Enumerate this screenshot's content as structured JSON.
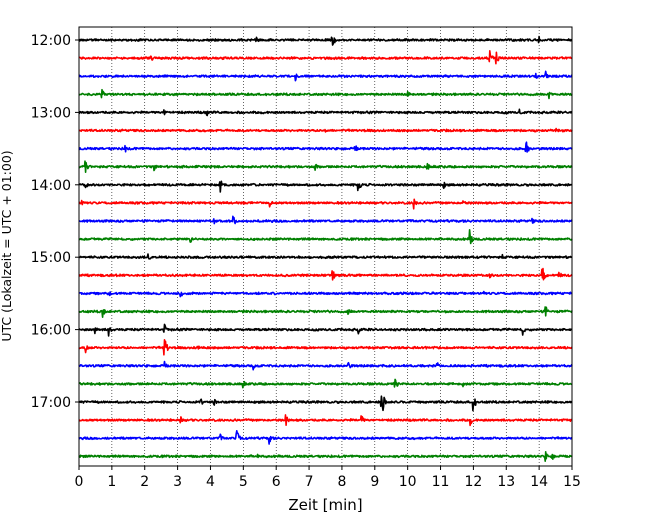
{
  "chart_data": {
    "type": "line",
    "xlabel": "Zeit  [min]",
    "ylabel": "UTC (Lokalzeit = UTC + 01:00)",
    "xlim": [
      0,
      15
    ],
    "x_ticks": [
      0,
      1,
      2,
      3,
      4,
      5,
      6,
      7,
      8,
      9,
      10,
      11,
      12,
      13,
      14,
      15
    ],
    "x_tick_labels": [
      "0",
      "1",
      "2",
      "3",
      "4",
      "5",
      "6",
      "7",
      "8",
      "9",
      "10",
      "11",
      "12",
      "13",
      "14",
      "15"
    ],
    "y_ticks": [
      "12:00",
      "13:00",
      "14:00",
      "15:00",
      "16:00",
      "17:00"
    ],
    "grid": "x-dotted",
    "trace_colors": [
      "#000000",
      "#ff0000",
      "#0000ff",
      "#008000"
    ],
    "traces": [
      {
        "start": "12:00",
        "color": "#000000",
        "events": [
          {
            "t": 7.7,
            "amp": 1.1
          },
          {
            "t": 5.4,
            "amp": 0.5
          },
          {
            "t": 14.0,
            "amp": 0.4
          }
        ]
      },
      {
        "start": "12:15",
        "color": "#ff0000",
        "events": [
          {
            "t": 12.5,
            "amp": 1.0
          },
          {
            "t": 12.7,
            "amp": 0.8
          },
          {
            "t": 2.2,
            "amp": 0.4
          }
        ]
      },
      {
        "start": "12:30",
        "color": "#0000ff",
        "events": [
          {
            "t": 6.6,
            "amp": 0.6
          },
          {
            "t": 14.2,
            "amp": 0.5
          },
          {
            "t": 13.9,
            "amp": 0.4
          }
        ]
      },
      {
        "start": "12:45",
        "color": "#008000",
        "events": [
          {
            "t": 0.7,
            "amp": 0.5
          },
          {
            "t": 10.0,
            "amp": 0.4
          },
          {
            "t": 14.3,
            "amp": 0.6
          }
        ]
      },
      {
        "start": "13:00",
        "color": "#000000",
        "events": [
          {
            "t": 2.6,
            "amp": 0.4
          },
          {
            "t": 3.9,
            "amp": 0.4
          },
          {
            "t": 13.4,
            "amp": 0.4
          }
        ]
      },
      {
        "start": "13:15",
        "color": "#ff0000",
        "events": [
          {
            "t": 7.5,
            "amp": 0.4
          },
          {
            "t": 14.5,
            "amp": 0.3
          }
        ]
      },
      {
        "start": "13:30",
        "color": "#0000ff",
        "events": [
          {
            "t": 1.4,
            "amp": 0.6
          },
          {
            "t": 8.4,
            "amp": 0.5
          },
          {
            "t": 13.6,
            "amp": 0.9
          }
        ]
      },
      {
        "start": "13:45",
        "color": "#008000",
        "events": [
          {
            "t": 0.2,
            "amp": 0.6
          },
          {
            "t": 2.3,
            "amp": 0.4
          },
          {
            "t": 7.2,
            "amp": 0.4
          },
          {
            "t": 10.6,
            "amp": 0.4
          }
        ]
      },
      {
        "start": "14:00",
        "color": "#000000",
        "events": [
          {
            "t": 4.3,
            "amp": 1.0
          },
          {
            "t": 8.5,
            "amp": 1.0
          },
          {
            "t": 0.2,
            "amp": 0.5
          },
          {
            "t": 11.1,
            "amp": 0.4
          }
        ]
      },
      {
        "start": "14:15",
        "color": "#ff0000",
        "events": [
          {
            "t": 5.8,
            "amp": 0.6
          },
          {
            "t": 10.2,
            "amp": 0.8
          },
          {
            "t": 0.1,
            "amp": 0.4
          },
          {
            "t": 11.7,
            "amp": 0.3
          }
        ]
      },
      {
        "start": "14:30",
        "color": "#0000ff",
        "events": [
          {
            "t": 4.7,
            "amp": 0.6
          },
          {
            "t": 4.1,
            "amp": 0.4
          },
          {
            "t": 13.8,
            "amp": 0.3
          }
        ]
      },
      {
        "start": "14:45",
        "color": "#008000",
        "events": [
          {
            "t": 11.9,
            "amp": 1.0
          },
          {
            "t": 3.4,
            "amp": 0.4
          }
        ]
      },
      {
        "start": "15:00",
        "color": "#000000",
        "events": [
          {
            "t": 2.1,
            "amp": 0.5
          },
          {
            "t": 12.9,
            "amp": 0.3
          }
        ]
      },
      {
        "start": "15:15",
        "color": "#ff0000",
        "events": [
          {
            "t": 7.7,
            "amp": 0.8
          },
          {
            "t": 14.1,
            "amp": 1.0
          },
          {
            "t": 14.6,
            "amp": 0.6
          },
          {
            "t": 12.5,
            "amp": 0.4
          }
        ]
      },
      {
        "start": "15:30",
        "color": "#0000ff",
        "events": [
          {
            "t": 0.9,
            "amp": 0.5
          },
          {
            "t": 3.1,
            "amp": 0.4
          },
          {
            "t": 12.3,
            "amp": 0.3
          }
        ]
      },
      {
        "start": "15:45",
        "color": "#008000",
        "events": [
          {
            "t": 0.7,
            "amp": 0.8
          },
          {
            "t": 8.2,
            "amp": 0.5
          },
          {
            "t": 14.2,
            "amp": 0.6
          }
        ]
      },
      {
        "start": "16:00",
        "color": "#000000",
        "events": [
          {
            "t": 0.9,
            "amp": 0.8
          },
          {
            "t": 2.6,
            "amp": 0.6
          },
          {
            "t": 8.5,
            "amp": 0.5
          },
          {
            "t": 13.5,
            "amp": 0.6
          },
          {
            "t": 0.5,
            "amp": 0.4
          }
        ]
      },
      {
        "start": "16:15",
        "color": "#ff0000",
        "events": [
          {
            "t": 2.6,
            "amp": 1.4
          },
          {
            "t": 0.2,
            "amp": 0.6
          },
          {
            "t": 3.6,
            "amp": 0.4
          }
        ]
      },
      {
        "start": "16:30",
        "color": "#0000ff",
        "events": [
          {
            "t": 2.6,
            "amp": 0.5
          },
          {
            "t": 5.3,
            "amp": 0.4
          },
          {
            "t": 8.2,
            "amp": 0.5
          },
          {
            "t": 10.9,
            "amp": 0.4
          }
        ]
      },
      {
        "start": "16:45",
        "color": "#008000",
        "events": [
          {
            "t": 9.6,
            "amp": 1.0
          },
          {
            "t": 5.0,
            "amp": 0.4
          },
          {
            "t": 11.7,
            "amp": 0.3
          }
        ]
      },
      {
        "start": "17:00",
        "color": "#000000",
        "events": [
          {
            "t": 9.2,
            "amp": 2.6
          },
          {
            "t": 12.0,
            "amp": 1.0
          },
          {
            "t": 3.7,
            "amp": 0.5
          },
          {
            "t": 4.1,
            "amp": 0.5
          }
        ]
      },
      {
        "start": "17:15",
        "color": "#ff0000",
        "events": [
          {
            "t": 6.3,
            "amp": 0.6
          },
          {
            "t": 8.6,
            "amp": 0.6
          },
          {
            "t": 11.9,
            "amp": 0.6
          },
          {
            "t": 3.1,
            "amp": 0.4
          }
        ]
      },
      {
        "start": "17:30",
        "color": "#0000ff",
        "events": [
          {
            "t": 4.8,
            "amp": 1.0
          },
          {
            "t": 5.8,
            "amp": 0.6
          },
          {
            "t": 4.3,
            "amp": 0.4
          }
        ]
      },
      {
        "start": "17:45",
        "color": "#008000",
        "events": [
          {
            "t": 5.4,
            "amp": 0.4
          },
          {
            "t": 14.2,
            "amp": 0.5
          },
          {
            "t": 14.4,
            "amp": 0.4
          }
        ]
      }
    ]
  }
}
